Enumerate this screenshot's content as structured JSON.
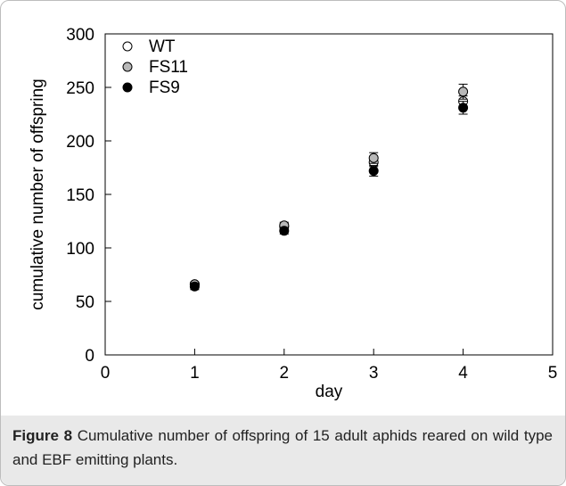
{
  "chart_data": {
    "type": "scatter",
    "title": "",
    "xlabel": "day",
    "ylabel": "cumulative number of offspring",
    "xlim": [
      0,
      5
    ],
    "ylim": [
      0,
      300
    ],
    "x_ticks": [
      0,
      1,
      2,
      3,
      4,
      5
    ],
    "y_ticks": [
      0,
      50,
      100,
      150,
      200,
      250,
      300
    ],
    "grid": false,
    "legend_position": "top-left",
    "series": [
      {
        "name": "WT",
        "marker": "open-circle",
        "fill": "#ffffff",
        "stroke": "#000000",
        "x": [
          1,
          2,
          3,
          4
        ],
        "y": [
          66,
          120,
          180,
          237
        ],
        "error": [
          2,
          3,
          4,
          5
        ]
      },
      {
        "name": "FS11",
        "marker": "gray-circle",
        "fill": "#b8b8b8",
        "stroke": "#000000",
        "x": [
          1,
          2,
          3,
          4
        ],
        "y": [
          66,
          121,
          184,
          246
        ],
        "error": [
          2,
          3,
          5,
          7
        ]
      },
      {
        "name": "FS9",
        "marker": "filled-circle",
        "fill": "#000000",
        "stroke": "#000000",
        "x": [
          1,
          2,
          3,
          4
        ],
        "y": [
          64,
          116,
          172,
          231
        ],
        "error": [
          3,
          3,
          5,
          6
        ]
      }
    ]
  },
  "caption": {
    "label": "Figure 8",
    "text": "Cumulative number of offspring of 15 adult aphids reared on wild type and EBF emitting plants",
    "end": "."
  }
}
